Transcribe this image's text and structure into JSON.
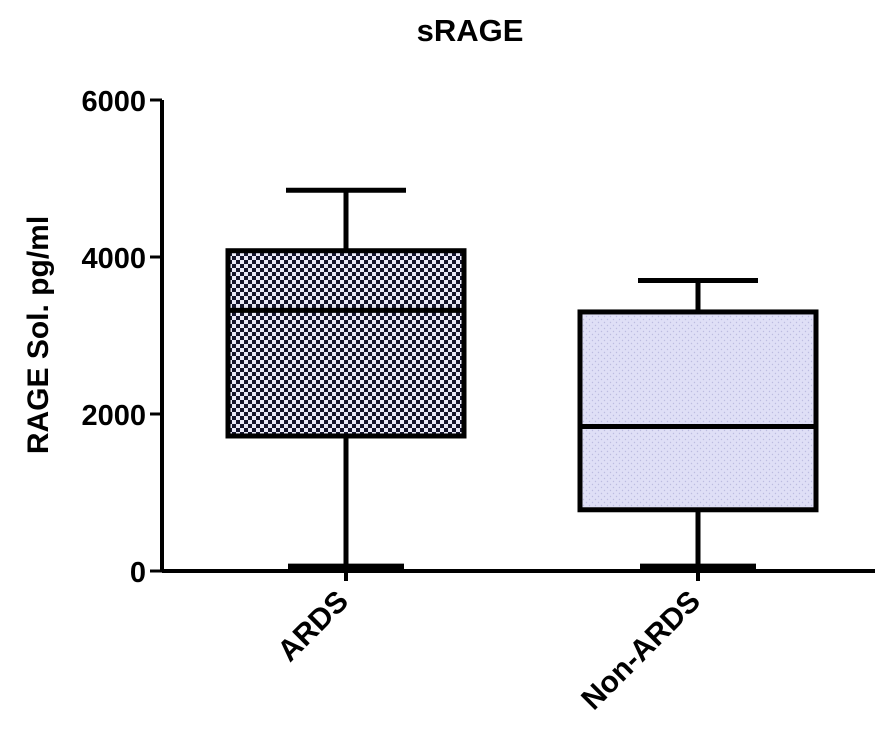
{
  "chart_data": {
    "type": "boxplot",
    "title": "sRAGE",
    "xlabel": "",
    "ylabel": "RAGE Sol. pg/ml",
    "ylim": [
      0,
      6000
    ],
    "yticks": [
      0,
      2000,
      4000,
      6000
    ],
    "ytick_labels": [
      "0",
      "2000",
      "4000",
      "6000"
    ],
    "categories": [
      "ARDS",
      "Non-ARDS"
    ],
    "series": [
      {
        "category": "ARDS",
        "min": 50,
        "q1": 1720,
        "median": 3320,
        "q3": 4080,
        "max": 4850,
        "fill": "#b8b8d8",
        "pattern": "checkered"
      },
      {
        "category": "Non-ARDS",
        "min": 50,
        "q1": 780,
        "median": 1840,
        "q3": 3300,
        "max": 3700,
        "fill": "#dcdcf4",
        "pattern": "fine-dots"
      }
    ],
    "grid": false,
    "legend": "none",
    "colors": {
      "axis": "#000000",
      "box_edge": "#000000",
      "text": "#000000"
    }
  }
}
